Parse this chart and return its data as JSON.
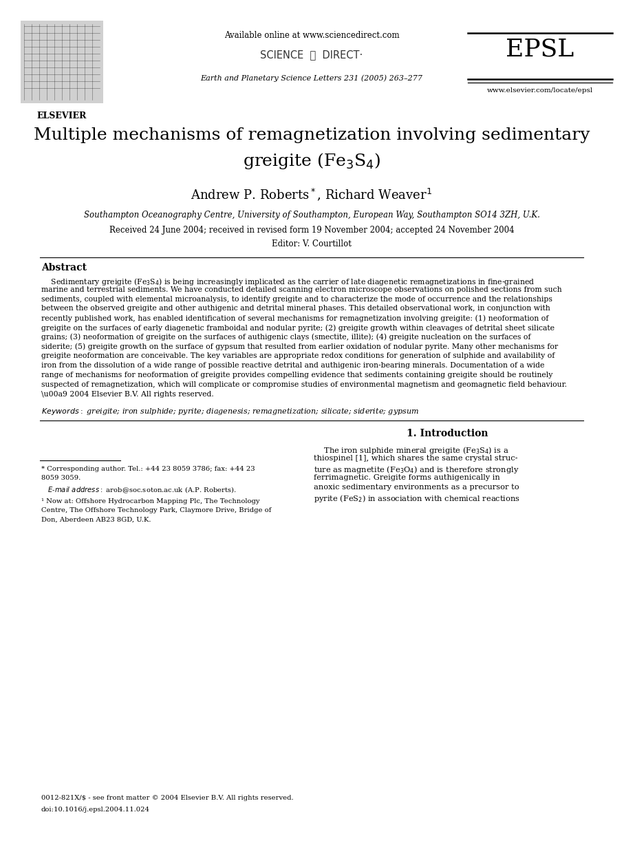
{
  "bg_color": "#ffffff",
  "page_width": 9.07,
  "page_height": 12.38,
  "dpi": 100,
  "header_available_online": "Available online at www.sciencedirect.com",
  "header_journal_ref": "Earth and Planetary Science Letters 231 (2005) 263–277",
  "header_epsl": "EPSL",
  "header_website": "www.elsevier.com/locate/epsl",
  "title_line1": "Multiple mechanisms of remagnetization involving sedimentary",
  "affiliation": "Southampton Oceanography Centre, University of Southampton, European Way, Southampton SO14 3ZH, U.K.",
  "received": "Received 24 June 2004; received in revised form 19 November 2004; accepted 24 November 2004",
  "editor": "Editor: V. Courtillot",
  "abstract_heading": "Abstract",
  "keywords_text": " greigite; iron sulphide; pyrite; diagenesis; remagnetization; silicate; siderite; gypsum",
  "intro_heading": "1. Introduction",
  "footnote1a": "* Corresponding author. Tel.: +44 23 8059 3786; fax: +44 23",
  "footnote1b": "8059 3059.",
  "footnote1_email": "   E-mail address: arob@soc.soton.ac.uk (A.P. Roberts).",
  "footnote2a": "¹ Now at: Offshore Hydrocarbon Mapping Plc, The Technology",
  "footnote2b": "Centre, The Offshore Technology Park, Claymore Drive, Bridge of",
  "footnote2c": "Don, Aberdeen AB23 8GD, U.K.",
  "bottom_issn": "0012-821X/$ - see front matter © 2004 Elsevier B.V. All rights reserved.",
  "bottom_doi": "doi:10.1016/j.epsl.2004.11.024"
}
